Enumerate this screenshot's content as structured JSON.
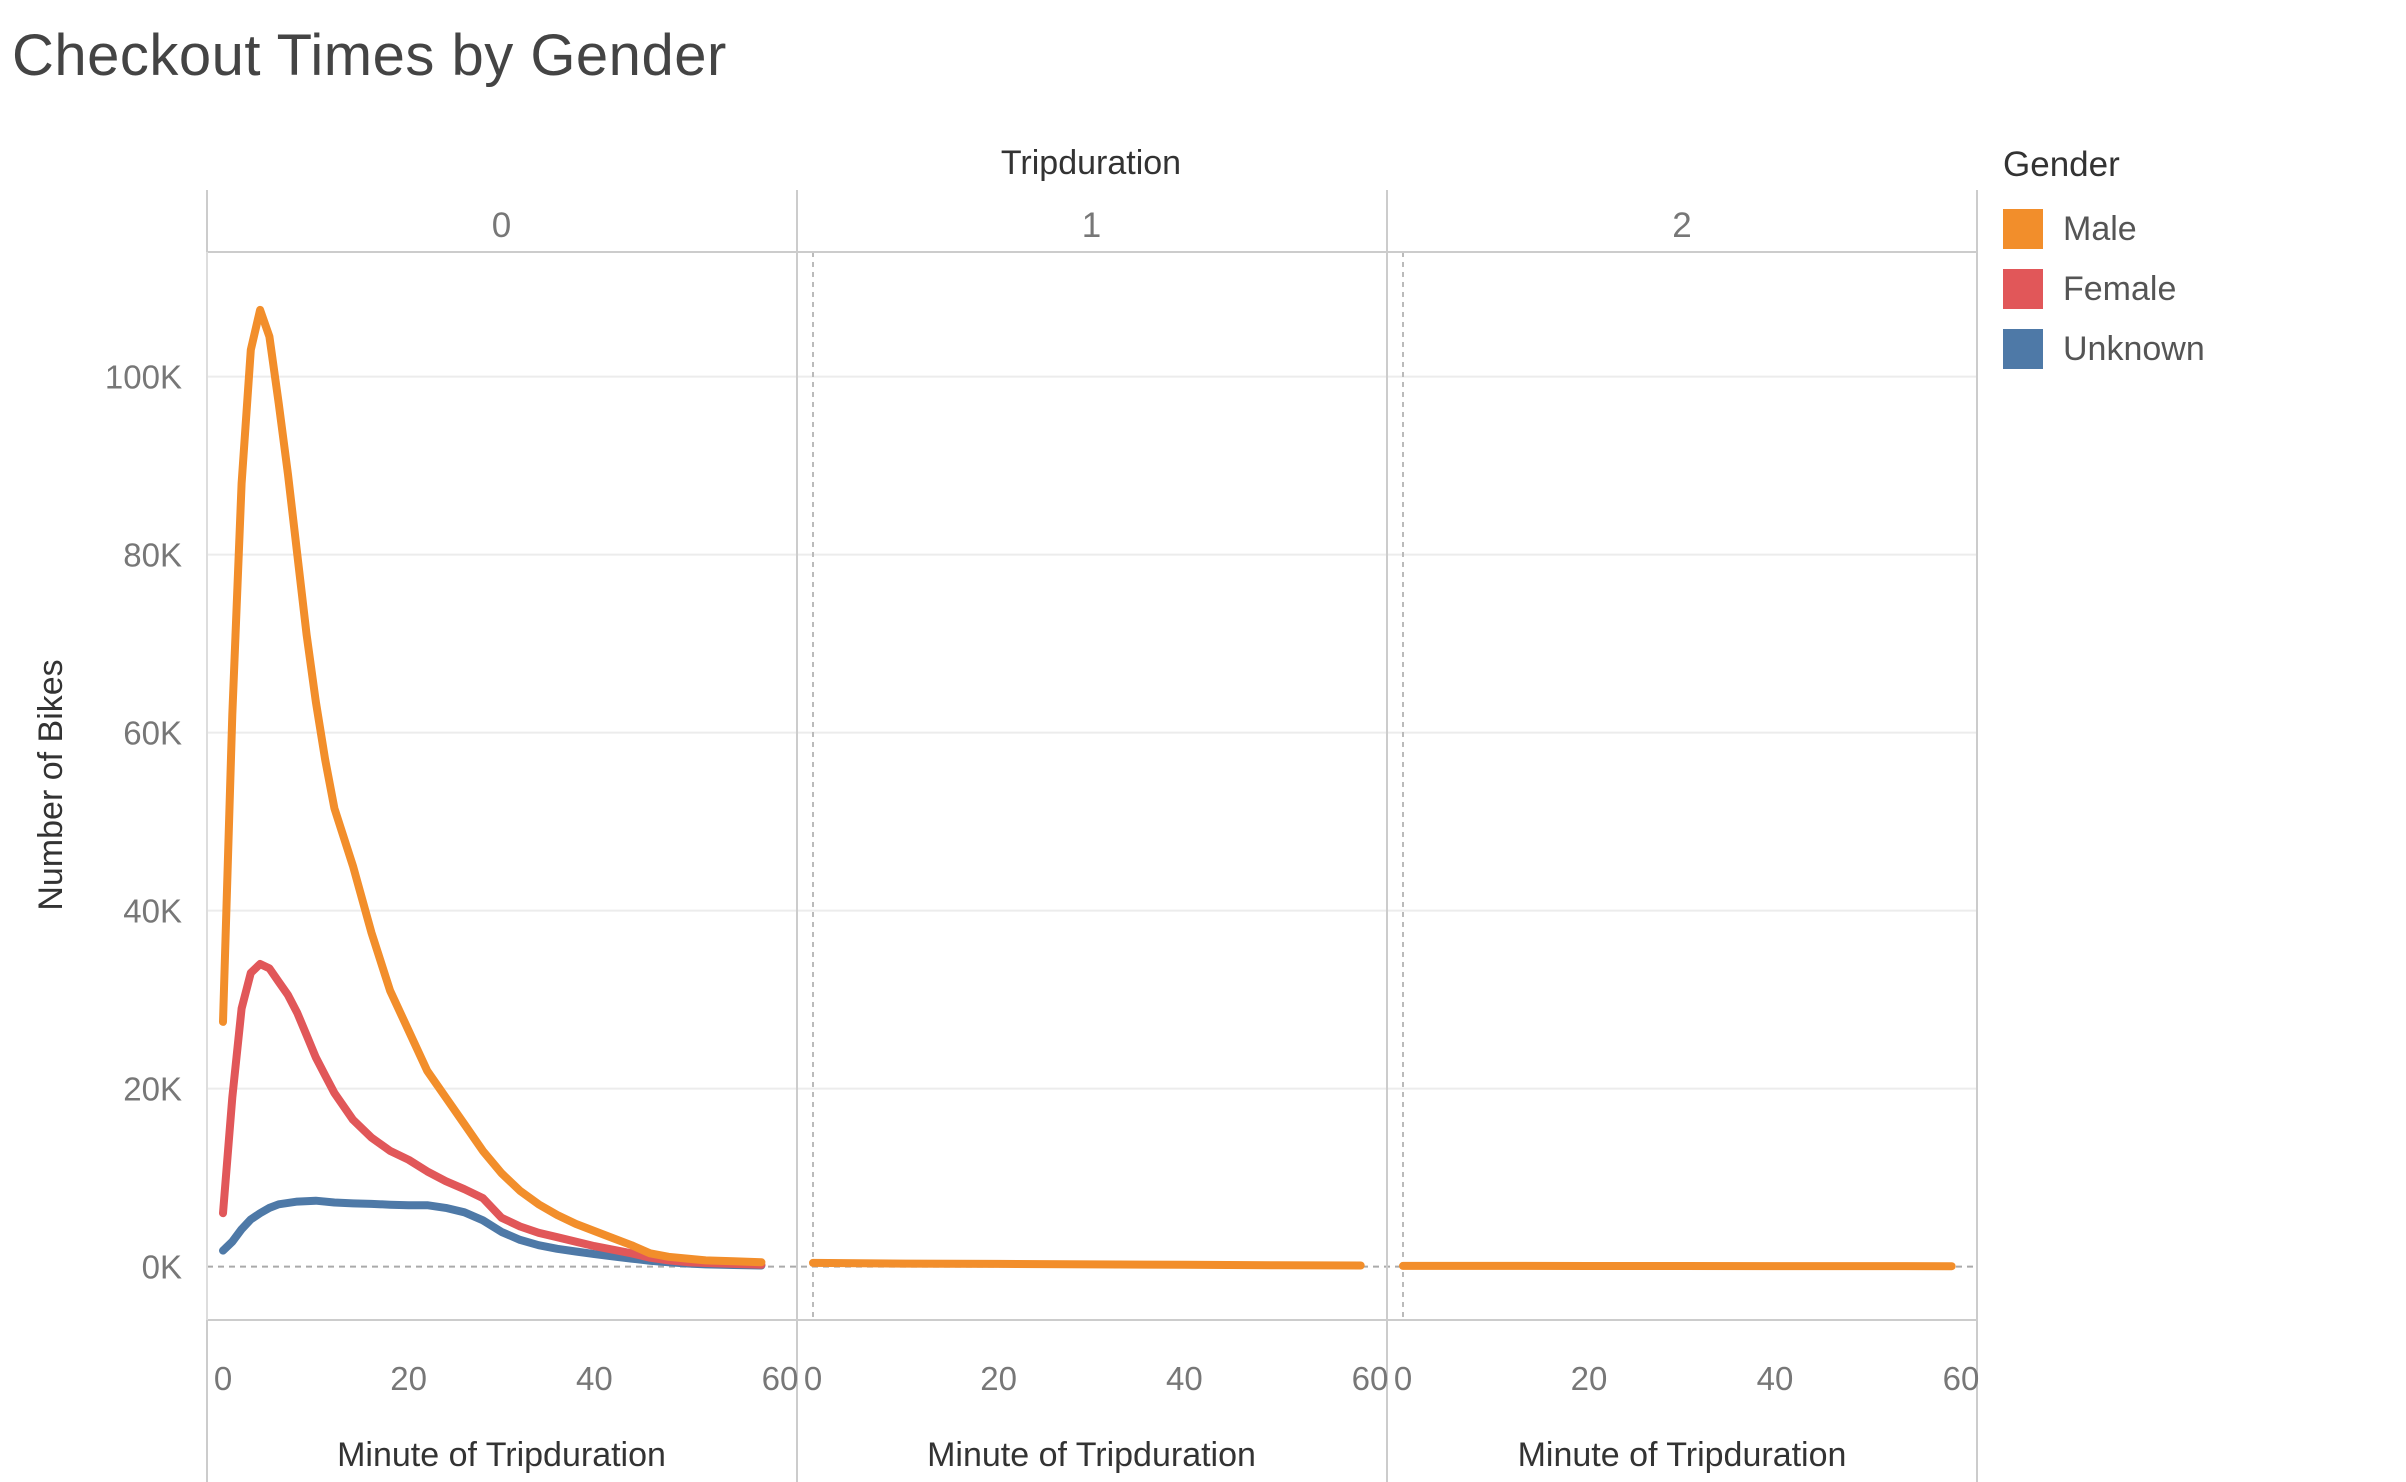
{
  "title": "Checkout Times by Gender",
  "legend": {
    "title": "Gender",
    "items": [
      {
        "label": "Male",
        "color": "#f28e2b"
      },
      {
        "label": "Female",
        "color": "#e15759"
      },
      {
        "label": "Unknown",
        "color": "#4e79a7"
      }
    ]
  },
  "chart_data": {
    "type": "line",
    "facet_header": "Tripduration",
    "facets": [
      "0",
      "1",
      "2"
    ],
    "xlabel": "Minute of Tripduration",
    "ylabel": "Number of Bikes",
    "xlim": [
      0,
      60
    ],
    "xticks": [
      0,
      20,
      40,
      60
    ],
    "xtick_labels": [
      "0",
      "20",
      "40",
      "60"
    ],
    "ylim": [
      -6000,
      114000
    ],
    "yticks": [
      0,
      20000,
      40000,
      60000,
      80000,
      100000
    ],
    "ytick_labels": [
      "0K",
      "20K",
      "40K",
      "60K",
      "80K",
      "100K"
    ],
    "grid": true,
    "legend_position": "right",
    "series": [
      {
        "name": "Male",
        "color": "#f28e2b",
        "facet": "0",
        "x": [
          0,
          1,
          2,
          3,
          4,
          5,
          6,
          7,
          8,
          9,
          10,
          11,
          12,
          14,
          16,
          18,
          20,
          22,
          24,
          26,
          28,
          30,
          32,
          34,
          36,
          38,
          40,
          42,
          44,
          46,
          48,
          50,
          52,
          55,
          58
        ],
        "y": [
          27500,
          62000,
          88000,
          103000,
          107500,
          104500,
          97000,
          89000,
          80000,
          71000,
          63500,
          57000,
          51500,
          45000,
          37500,
          31000,
          26500,
          22000,
          19000,
          16000,
          13000,
          10500,
          8500,
          7000,
          5800,
          4800,
          4000,
          3200,
          2400,
          1500,
          1100,
          900,
          700,
          600,
          500
        ]
      },
      {
        "name": "Female",
        "color": "#e15759",
        "facet": "0",
        "x": [
          0,
          1,
          2,
          3,
          4,
          5,
          6,
          7,
          8,
          9,
          10,
          11,
          12,
          14,
          16,
          18,
          20,
          22,
          24,
          26,
          28,
          30,
          32,
          34,
          36,
          38,
          40,
          42,
          44,
          46,
          48,
          50,
          52,
          55,
          58
        ],
        "y": [
          6000,
          19000,
          29000,
          33000,
          34000,
          33500,
          32000,
          30500,
          28500,
          26000,
          23500,
          21500,
          19500,
          16500,
          14500,
          13000,
          12000,
          10700,
          9600,
          8700,
          7700,
          5500,
          4500,
          3800,
          3300,
          2800,
          2300,
          1900,
          1500,
          1000,
          700,
          500,
          400,
          300,
          200
        ]
      },
      {
        "name": "Unknown",
        "color": "#4e79a7",
        "facet": "0",
        "x": [
          0,
          1,
          2,
          3,
          4,
          5,
          6,
          8,
          10,
          12,
          14,
          16,
          18,
          20,
          22,
          24,
          26,
          28,
          30,
          32,
          34,
          36,
          38,
          40,
          42,
          44,
          46,
          48,
          50,
          52,
          55,
          58
        ],
        "y": [
          1800,
          2800,
          4200,
          5300,
          6000,
          6600,
          7000,
          7300,
          7400,
          7200,
          7100,
          7050,
          6950,
          6900,
          6900,
          6600,
          6100,
          5200,
          3900,
          3000,
          2400,
          2000,
          1700,
          1400,
          1150,
          900,
          650,
          480,
          350,
          250,
          180,
          120
        ]
      },
      {
        "name": "Male",
        "color": "#f28e2b",
        "facet": "1",
        "x": [
          0,
          5,
          10,
          20,
          30,
          40,
          50,
          59
        ],
        "y": [
          420,
          380,
          340,
          300,
          250,
          200,
          150,
          120
        ]
      },
      {
        "name": "Male",
        "color": "#f28e2b",
        "facet": "2",
        "x": [
          0,
          10,
          20,
          30,
          40,
          50,
          59
        ],
        "y": [
          80,
          75,
          70,
          65,
          60,
          55,
          50
        ]
      }
    ]
  }
}
